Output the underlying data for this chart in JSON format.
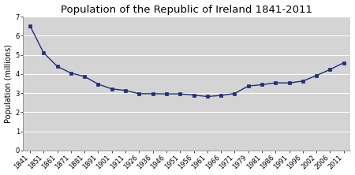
{
  "title": "Population of the Republic of Ireland 1841-2011",
  "ylabel": "Population (millions)",
  "years": [
    1841,
    1851,
    1861,
    1871,
    1881,
    1891,
    1901,
    1911,
    1926,
    1936,
    1946,
    1951,
    1956,
    1961,
    1966,
    1971,
    1979,
    1981,
    1986,
    1991,
    1996,
    2002,
    2006,
    2011
  ],
  "population": [
    6.53,
    5.11,
    4.4,
    4.05,
    3.87,
    3.47,
    3.22,
    3.14,
    2.97,
    2.97,
    2.96,
    2.96,
    2.9,
    2.82,
    2.88,
    2.98,
    3.37,
    3.44,
    3.54,
    3.53,
    3.63,
    3.92,
    4.24,
    4.59
  ],
  "line_color": "#1f2e7a",
  "marker": "s",
  "marker_size": 2.8,
  "bg_color": "#d4d4d4",
  "fig_bg_color": "#ffffff",
  "ylim": [
    0,
    7
  ],
  "yticks": [
    0,
    1,
    2,
    3,
    4,
    5,
    6,
    7
  ],
  "title_fontsize": 9.5,
  "axis_label_fontsize": 7,
  "tick_fontsize": 6,
  "grid_color": "#bbbbbb",
  "linewidth": 1.0
}
